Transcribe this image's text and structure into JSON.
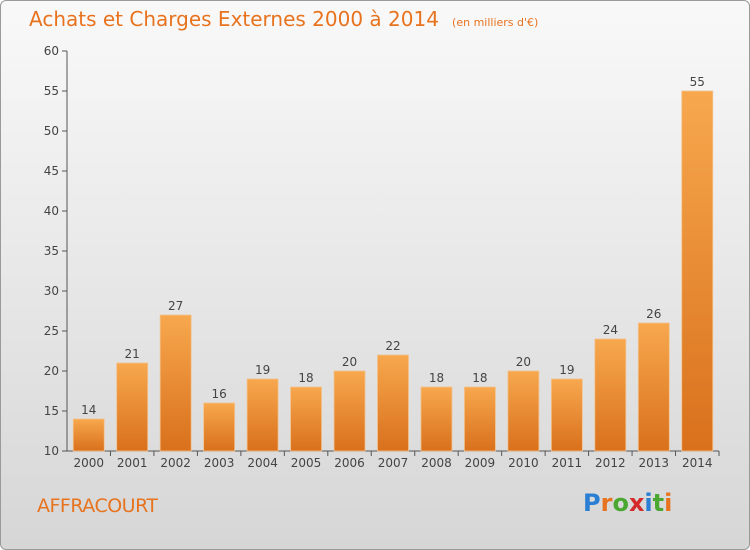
{
  "header": {
    "title": "Achats et Charges Externes 2000 à 2014",
    "subtitle": "(en milliers d'€)"
  },
  "commune": "AFFRACOURT",
  "logo": {
    "text": "Proxiti",
    "colors": [
      "#2a7fd4",
      "#e8731f",
      "#4aa832",
      "#d42a2a",
      "#2a7fd4",
      "#4aa832",
      "#e8731f"
    ]
  },
  "chart_data": {
    "type": "bar",
    "categories": [
      "2000",
      "2001",
      "2002",
      "2003",
      "2004",
      "2005",
      "2006",
      "2007",
      "2008",
      "2009",
      "2010",
      "2011",
      "2012",
      "2013",
      "2014"
    ],
    "values": [
      14,
      21,
      27,
      16,
      19,
      18,
      20,
      22,
      18,
      18,
      20,
      19,
      24,
      26,
      55
    ],
    "ylim": [
      10,
      60
    ],
    "yticks": [
      10,
      15,
      20,
      25,
      30,
      35,
      40,
      45,
      50,
      55,
      60
    ],
    "grid": false,
    "bar_color_top": "#f7a84e",
    "bar_color_bottom": "#d9701c",
    "title": "Achats et Charges Externes 2000 à 2014"
  }
}
